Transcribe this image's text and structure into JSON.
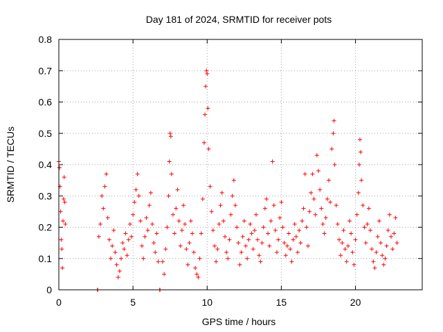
{
  "chart_data": {
    "type": "scatter",
    "title": "Day 181 of 2024, SRMTID for receiver pots",
    "xlabel": "GPS time / hours",
    "ylabel": "SRMTID / TECUs",
    "xlim": [
      0,
      24.5
    ],
    "ylim": [
      0,
      0.8
    ],
    "xticks": [
      0,
      5,
      10,
      15,
      20
    ],
    "xtick_labels": [
      "0",
      "5",
      "10",
      "15",
      "20"
    ],
    "yticks": [
      0,
      0.1,
      0.2,
      0.3,
      0.4,
      0.5,
      0.6,
      0.7,
      0.8
    ],
    "ytick_labels": [
      "0",
      "0.1",
      "0.2",
      "0.3",
      "0.4",
      "0.5",
      "0.6",
      "0.7",
      "0.8"
    ],
    "grid": true,
    "marker": "+",
    "color": "#ff0000",
    "series": [
      {
        "name": "SRMTID",
        "points": [
          [
            0.0,
            0.41
          ],
          [
            0.04,
            0.39
          ],
          [
            0.08,
            0.33
          ],
          [
            0.12,
            0.25
          ],
          [
            0.16,
            0.16
          ],
          [
            0.2,
            0.13
          ],
          [
            0.24,
            0.07
          ],
          [
            0.28,
            0.22
          ],
          [
            0.32,
            0.29
          ],
          [
            0.36,
            0.36
          ],
          [
            0.4,
            0.28
          ],
          [
            0.44,
            0.21
          ],
          [
            2.6,
            0.0
          ],
          [
            2.62,
            0.0
          ],
          [
            6.8,
            0.0
          ],
          [
            6.82,
            0.0
          ],
          [
            2.7,
            0.17
          ],
          [
            2.8,
            0.21
          ],
          [
            2.9,
            0.3
          ],
          [
            3.0,
            0.26
          ],
          [
            3.1,
            0.33
          ],
          [
            3.2,
            0.37
          ],
          [
            3.3,
            0.23
          ],
          [
            3.4,
            0.16
          ],
          [
            3.5,
            0.1
          ],
          [
            3.6,
            0.14
          ],
          [
            3.7,
            0.19
          ],
          [
            3.8,
            0.12
          ],
          [
            3.9,
            0.08
          ],
          [
            4.0,
            0.04
          ],
          [
            4.1,
            0.06
          ],
          [
            4.2,
            0.1
          ],
          [
            4.3,
            0.15
          ],
          [
            4.4,
            0.13
          ],
          [
            4.5,
            0.18
          ],
          [
            4.6,
            0.11
          ],
          [
            4.7,
            0.16
          ],
          [
            4.8,
            0.21
          ],
          [
            4.9,
            0.17
          ],
          [
            5.0,
            0.24
          ],
          [
            5.1,
            0.28
          ],
          [
            5.2,
            0.32
          ],
          [
            5.3,
            0.37
          ],
          [
            5.4,
            0.3
          ],
          [
            5.5,
            0.22
          ],
          [
            5.6,
            0.14
          ],
          [
            5.7,
            0.1
          ],
          [
            5.8,
            0.17
          ],
          [
            5.9,
            0.23
          ],
          [
            6.0,
            0.19
          ],
          [
            6.1,
            0.27
          ],
          [
            6.2,
            0.31
          ],
          [
            6.3,
            0.21
          ],
          [
            6.4,
            0.15
          ],
          [
            6.5,
            0.12
          ],
          [
            6.6,
            0.18
          ],
          [
            6.7,
            0.09
          ],
          [
            7.0,
            0.09
          ],
          [
            7.1,
            0.05
          ],
          [
            7.2,
            0.13
          ],
          [
            7.3,
            0.2
          ],
          [
            7.4,
            0.3
          ],
          [
            7.45,
            0.41
          ],
          [
            7.5,
            0.5
          ],
          [
            7.55,
            0.49
          ],
          [
            7.6,
            0.37
          ],
          [
            7.7,
            0.24
          ],
          [
            7.8,
            0.18
          ],
          [
            7.9,
            0.26
          ],
          [
            8.0,
            0.32
          ],
          [
            8.1,
            0.22
          ],
          [
            8.2,
            0.14
          ],
          [
            8.3,
            0.19
          ],
          [
            8.4,
            0.27
          ],
          [
            8.5,
            0.21
          ],
          [
            8.6,
            0.13
          ],
          [
            8.7,
            0.08
          ],
          [
            8.8,
            0.15
          ],
          [
            8.9,
            0.22
          ],
          [
            9.0,
            0.18
          ],
          [
            9.1,
            0.12
          ],
          [
            9.2,
            0.07
          ],
          [
            9.3,
            0.05
          ],
          [
            9.4,
            0.04
          ],
          [
            9.5,
            0.1
          ],
          [
            9.6,
            0.18
          ],
          [
            9.7,
            0.29
          ],
          [
            9.8,
            0.47
          ],
          [
            9.85,
            0.56
          ],
          [
            9.9,
            0.65
          ],
          [
            9.95,
            0.7
          ],
          [
            10.0,
            0.69
          ],
          [
            10.05,
            0.58
          ],
          [
            10.1,
            0.45
          ],
          [
            10.2,
            0.33
          ],
          [
            10.3,
            0.25
          ],
          [
            10.4,
            0.19
          ],
          [
            10.5,
            0.14
          ],
          [
            10.6,
            0.09
          ],
          [
            10.7,
            0.13
          ],
          [
            10.8,
            0.21
          ],
          [
            10.9,
            0.27
          ],
          [
            11.0,
            0.31
          ],
          [
            11.1,
            0.22
          ],
          [
            11.2,
            0.17
          ],
          [
            11.3,
            0.12
          ],
          [
            11.4,
            0.1
          ],
          [
            11.5,
            0.16
          ],
          [
            11.6,
            0.24
          ],
          [
            11.7,
            0.3
          ],
          [
            11.8,
            0.35
          ],
          [
            11.9,
            0.27
          ],
          [
            12.0,
            0.2
          ],
          [
            12.1,
            0.15
          ],
          [
            12.2,
            0.08
          ],
          [
            12.3,
            0.12
          ],
          [
            12.4,
            0.17
          ],
          [
            12.5,
            0.22
          ],
          [
            12.6,
            0.14
          ],
          [
            12.7,
            0.1
          ],
          [
            12.8,
            0.16
          ],
          [
            12.9,
            0.21
          ],
          [
            13.0,
            0.18
          ],
          [
            13.1,
            0.13
          ],
          [
            13.2,
            0.19
          ],
          [
            13.3,
            0.24
          ],
          [
            13.4,
            0.16
          ],
          [
            13.5,
            0.11
          ],
          [
            13.6,
            0.09
          ],
          [
            13.7,
            0.15
          ],
          [
            13.8,
            0.2
          ],
          [
            13.9,
            0.26
          ],
          [
            14.0,
            0.29
          ],
          [
            14.1,
            0.18
          ],
          [
            14.2,
            0.14
          ],
          [
            14.3,
            0.22
          ],
          [
            14.4,
            0.41
          ],
          [
            14.5,
            0.27
          ],
          [
            14.6,
            0.19
          ],
          [
            14.7,
            0.12
          ],
          [
            14.8,
            0.16
          ],
          [
            14.9,
            0.23
          ],
          [
            15.0,
            0.28
          ],
          [
            15.1,
            0.2
          ],
          [
            15.2,
            0.15
          ],
          [
            15.3,
            0.11
          ],
          [
            15.4,
            0.14
          ],
          [
            15.5,
            0.18
          ],
          [
            15.6,
            0.13
          ],
          [
            15.7,
            0.09
          ],
          [
            15.8,
            0.16
          ],
          [
            15.9,
            0.21
          ],
          [
            16.0,
            0.17
          ],
          [
            16.1,
            0.12
          ],
          [
            16.2,
            0.19
          ],
          [
            16.3,
            0.15
          ],
          [
            16.4,
            0.22
          ],
          [
            16.5,
            0.26
          ],
          [
            16.6,
            0.37
          ],
          [
            16.7,
            0.2
          ],
          [
            16.8,
            0.14
          ],
          [
            16.9,
            0.25
          ],
          [
            17.0,
            0.31
          ],
          [
            17.1,
            0.37
          ],
          [
            17.2,
            0.29
          ],
          [
            17.3,
            0.24
          ],
          [
            17.4,
            0.43
          ],
          [
            17.5,
            0.38
          ],
          [
            17.6,
            0.32
          ],
          [
            17.7,
            0.26
          ],
          [
            17.8,
            0.21
          ],
          [
            17.9,
            0.18
          ],
          [
            18.0,
            0.23
          ],
          [
            18.1,
            0.29
          ],
          [
            18.2,
            0.35
          ],
          [
            18.3,
            0.28
          ],
          [
            18.4,
            0.45
          ],
          [
            18.5,
            0.5
          ],
          [
            18.55,
            0.54
          ],
          [
            18.6,
            0.4
          ],
          [
            18.7,
            0.27
          ],
          [
            18.8,
            0.21
          ],
          [
            18.9,
            0.16
          ],
          [
            19.0,
            0.11
          ],
          [
            19.1,
            0.15
          ],
          [
            19.2,
            0.19
          ],
          [
            19.3,
            0.13
          ],
          [
            19.4,
            0.09
          ],
          [
            19.5,
            0.14
          ],
          [
            19.6,
            0.22
          ],
          [
            19.7,
            0.18
          ],
          [
            19.8,
            0.12
          ],
          [
            19.9,
            0.08
          ],
          [
            20.0,
            0.16
          ],
          [
            20.1,
            0.24
          ],
          [
            20.2,
            0.31
          ],
          [
            20.25,
            0.4
          ],
          [
            20.3,
            0.48
          ],
          [
            20.35,
            0.44
          ],
          [
            20.4,
            0.35
          ],
          [
            20.5,
            0.27
          ],
          [
            20.6,
            0.2
          ],
          [
            20.7,
            0.15
          ],
          [
            20.8,
            0.21
          ],
          [
            20.9,
            0.26
          ],
          [
            21.0,
            0.19
          ],
          [
            21.1,
            0.13
          ],
          [
            21.2,
            0.09
          ],
          [
            21.3,
            0.07
          ],
          [
            21.4,
            0.12
          ],
          [
            21.5,
            0.17
          ],
          [
            21.6,
            0.22
          ],
          [
            21.7,
            0.15
          ],
          [
            21.8,
            0.11
          ],
          [
            21.9,
            0.08
          ],
          [
            22.0,
            0.1
          ],
          [
            22.1,
            0.14
          ],
          [
            22.2,
            0.19
          ],
          [
            22.3,
            0.24
          ],
          [
            22.4,
            0.17
          ],
          [
            22.5,
            0.13
          ],
          [
            22.6,
            0.18
          ],
          [
            22.7,
            0.23
          ],
          [
            22.8,
            0.15
          ]
        ]
      }
    ]
  }
}
